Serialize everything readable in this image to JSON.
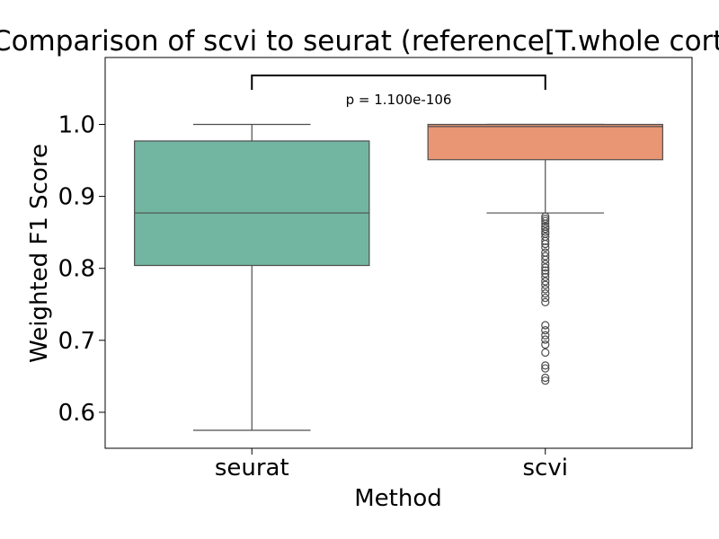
{
  "chart_data": {
    "type": "box",
    "title": "Comparison of scvi to seurat (reference[T.whole cortex]:m",
    "xlabel": "Method",
    "ylabel": "Weighted F1 Score",
    "ylim": [
      0.55,
      1.093
    ],
    "yticks": [
      "0.6",
      "0.7",
      "0.8",
      "0.9",
      "1.0"
    ],
    "grid": false,
    "categories": [
      "seurat",
      "scvi"
    ],
    "colors": [
      "#72b6a1",
      "#e99675"
    ],
    "boxes": [
      {
        "name": "seurat",
        "whisker_low": 0.575,
        "q1": 0.804,
        "median": 0.877,
        "q3": 0.977,
        "whisker_high": 1.0,
        "outliers": []
      },
      {
        "name": "scvi",
        "whisker_low": 0.877,
        "q1": 0.951,
        "median": 0.997,
        "q3": 1.0,
        "whisker_high": 1.0,
        "outliers": [
          0.872,
          0.869,
          0.866,
          0.862,
          0.858,
          0.855,
          0.851,
          0.848,
          0.844,
          0.838,
          0.834,
          0.829,
          0.822,
          0.817,
          0.812,
          0.806,
          0.801,
          0.797,
          0.793,
          0.788,
          0.782,
          0.777,
          0.771,
          0.765,
          0.759,
          0.753,
          0.721,
          0.714,
          0.707,
          0.701,
          0.694,
          0.683,
          0.665,
          0.661,
          0.648,
          0.644
        ]
      }
    ],
    "annotation": {
      "text": "p = 1.100e-106",
      "between": [
        "seurat",
        "scvi"
      ]
    }
  }
}
